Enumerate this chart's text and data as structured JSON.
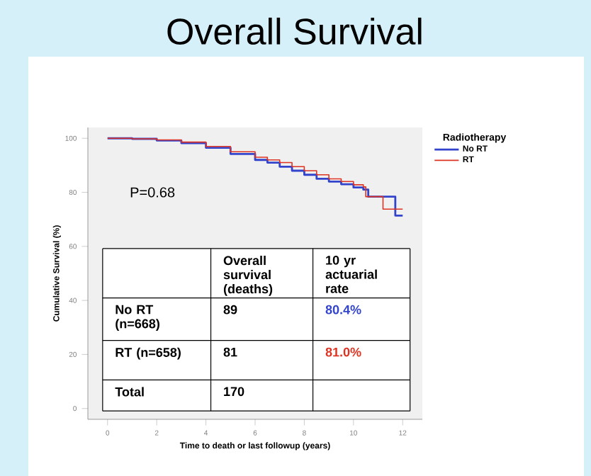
{
  "chart_data": {
    "type": "step",
    "title": "Overall Survival",
    "xlabel": "Time to death or last followup (years)",
    "ylabel": "Cumulative Survival (%)",
    "legend_title": "Radiotherapy",
    "legend": "right",
    "xlim": [
      -0.8,
      12.8
    ],
    "ylim": [
      -4,
      104
    ],
    "xticks": [
      0,
      2,
      4,
      6,
      8,
      10,
      12
    ],
    "yticks": [
      0,
      20,
      40,
      60,
      80,
      100
    ],
    "series": [
      {
        "name": "No RT",
        "color": "#3344cc",
        "x": [
          0,
          1,
          2,
          3,
          4,
          5,
          6,
          6.5,
          7,
          7.5,
          8,
          8.5,
          9,
          9.5,
          10,
          10.4,
          10.6,
          11.7,
          12
        ],
        "values": [
          100,
          99.8,
          99.2,
          98.2,
          96.5,
          94.2,
          92,
          91,
          89.5,
          88,
          86.5,
          85,
          84,
          83,
          81.8,
          81,
          78.4,
          71.4,
          71.4
        ]
      },
      {
        "name": "RT",
        "color": "#dd3322",
        "x": [
          0,
          1,
          2,
          3,
          4,
          5,
          6,
          6.5,
          7,
          7.5,
          8,
          8.5,
          9,
          9.5,
          10,
          10.4,
          10.5,
          11.2,
          12
        ],
        "values": [
          100,
          99.8,
          99.4,
          98.6,
          97,
          95,
          93,
          92,
          91,
          89.5,
          88,
          86.5,
          85,
          84,
          82.8,
          82,
          78.4,
          73.8,
          73.8
        ]
      }
    ],
    "annotations": [
      "P=0.68",
      "Overall survival (deaths)",
      "10 yr actuarial rate",
      "No RT (n=668)",
      "89",
      "80.4%",
      "RT (n=658)",
      "81",
      "81.0%",
      "Total",
      "170"
    ]
  }
}
